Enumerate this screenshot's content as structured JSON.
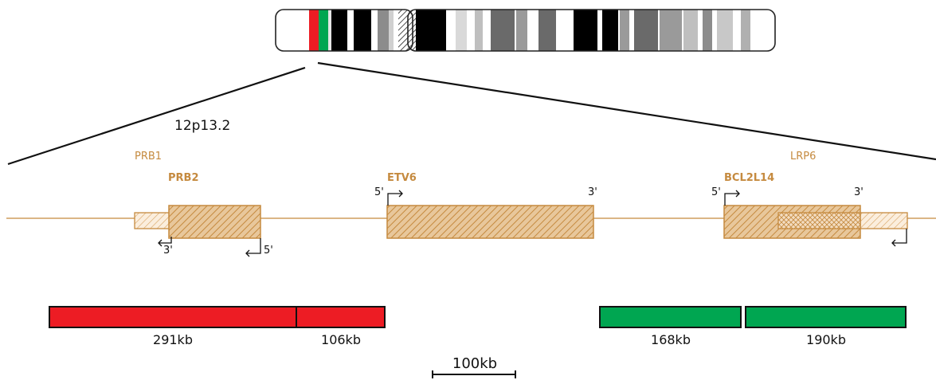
{
  "diagram": {
    "band_label": "12p13.2",
    "genes": {
      "prb1": "PRB1",
      "prb2": "PRB2",
      "etv6": "ETV6",
      "bcl2l14": "BCL2L14",
      "lrp6": "LRP6"
    },
    "strand_labels": {
      "prb2_3p": "3'",
      "prb2_5p": "5'",
      "etv6_5p": "5'",
      "etv6_3p": "3'",
      "bcl2l14_5p": "5'",
      "bcl2l14_3p": "3'"
    },
    "red_segments": [
      "291kb",
      "106kb"
    ],
    "green_segments": [
      "168kb",
      "190kb"
    ],
    "scale_bar": "100kb"
  },
  "colors": {
    "gene": "#c58a3f",
    "gene_fill": "#e6b885",
    "probe_red": "#ed1c24",
    "probe_green": "#00a651",
    "chrom_outline": "#222222"
  }
}
